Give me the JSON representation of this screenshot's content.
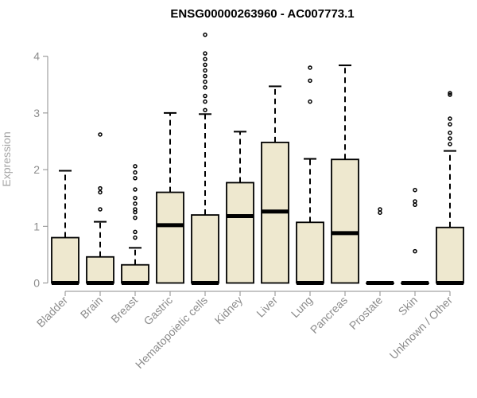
{
  "chart_data": {
    "type": "boxplot",
    "title": "ENSG00000263960 - AC007773.1",
    "xlabel": "",
    "ylabel": "Expression",
    "ylim": [
      0,
      4.4
    ],
    "yticks": [
      0,
      1,
      2,
      3,
      4
    ],
    "box_fill": "#eee8cf",
    "box_stroke": "#000000",
    "categories": [
      "Bladder",
      "Brain",
      "Breast",
      "Gastric",
      "Hematopoietic cells",
      "Kidney",
      "Liver",
      "Lung",
      "Pancreas",
      "Prostate",
      "Skin",
      "Unknown / Other"
    ],
    "boxes": [
      {
        "category": "Bladder",
        "whisker_low": 0,
        "q1": 0,
        "median": 0,
        "q3": 0.8,
        "whisker_high": 1.98,
        "outliers": []
      },
      {
        "category": "Brain",
        "whisker_low": 0,
        "q1": 0,
        "median": 0,
        "q3": 0.46,
        "whisker_high": 1.08,
        "outliers": [
          1.3,
          1.6,
          1.67,
          2.62
        ]
      },
      {
        "category": "Breast",
        "whisker_low": 0,
        "q1": 0,
        "median": 0,
        "q3": 0.32,
        "whisker_high": 0.62,
        "outliers": [
          0.8,
          0.9,
          1.15,
          1.25,
          1.3,
          1.4,
          1.5,
          1.65,
          1.85,
          1.95,
          2.06
        ]
      },
      {
        "category": "Gastric",
        "whisker_low": 0,
        "q1": 0,
        "median": 1.02,
        "q3": 1.6,
        "whisker_high": 3.0,
        "outliers": []
      },
      {
        "category": "Hematopoietic cells",
        "whisker_low": 0,
        "q1": 0,
        "median": 0,
        "q3": 1.2,
        "whisker_high": 2.98,
        "outliers": [
          3.05,
          3.2,
          3.3,
          3.45,
          3.55,
          3.65,
          3.75,
          3.85,
          3.95,
          4.05,
          4.38
        ]
      },
      {
        "category": "Kidney",
        "whisker_low": 0,
        "q1": 0,
        "median": 1.18,
        "q3": 1.77,
        "whisker_high": 2.67,
        "outliers": []
      },
      {
        "category": "Liver",
        "whisker_low": 0,
        "q1": 0,
        "median": 1.26,
        "q3": 2.48,
        "whisker_high": 3.47,
        "outliers": []
      },
      {
        "category": "Lung",
        "whisker_low": 0,
        "q1": 0,
        "median": 0,
        "q3": 1.07,
        "whisker_high": 2.19,
        "outliers": [
          3.2,
          3.57,
          3.8
        ]
      },
      {
        "category": "Pancreas",
        "whisker_low": 0,
        "q1": 0,
        "median": 0.88,
        "q3": 2.18,
        "whisker_high": 3.84,
        "outliers": []
      },
      {
        "category": "Prostate",
        "whisker_low": 0,
        "q1": 0,
        "median": 0,
        "q3": 0,
        "whisker_high": 0,
        "outliers": [
          1.24,
          1.3
        ]
      },
      {
        "category": "Skin",
        "whisker_low": 0,
        "q1": 0,
        "median": 0,
        "q3": 0,
        "whisker_high": 0,
        "outliers": [
          0.56,
          1.38,
          1.44,
          1.64
        ]
      },
      {
        "category": "Unknown / Other",
        "whisker_low": 0,
        "q1": 0,
        "median": 0,
        "q3": 0.98,
        "whisker_high": 2.33,
        "outliers": [
          2.45,
          2.55,
          2.65,
          2.8,
          2.9,
          3.32,
          3.35
        ]
      }
    ]
  }
}
